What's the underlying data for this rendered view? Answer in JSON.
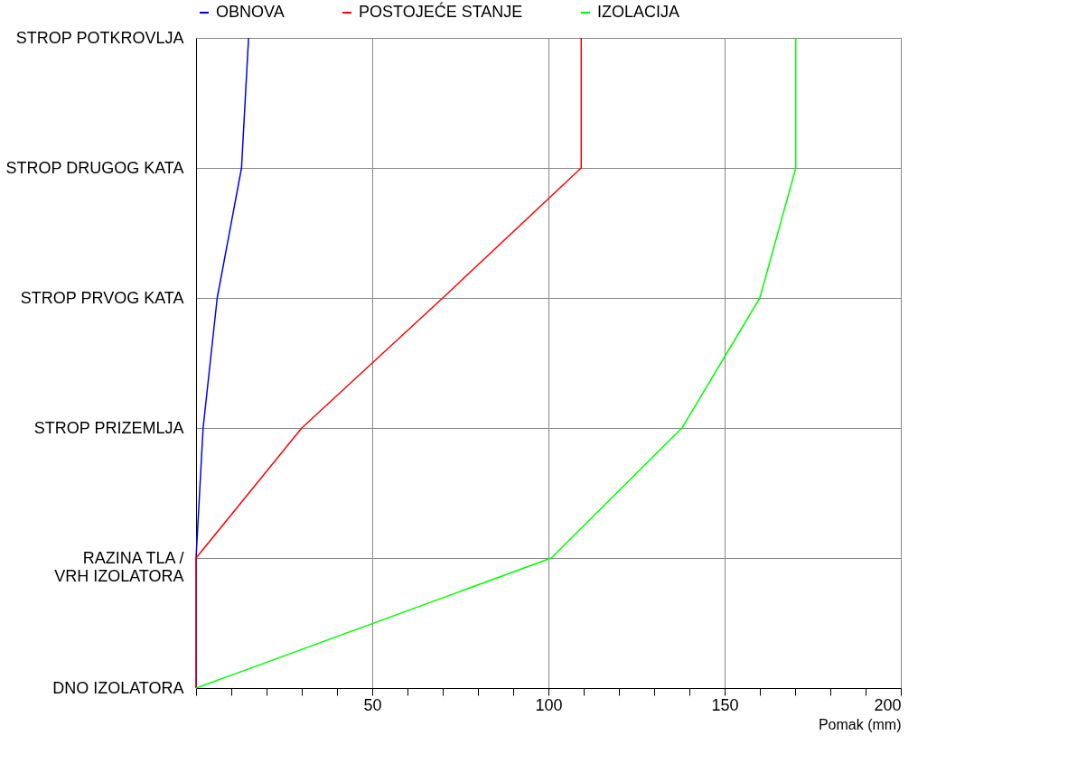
{
  "chart_data": {
    "type": "line",
    "orientation": "horizontal",
    "xlabel": "Pomak (mm)",
    "categories": [
      "STROP POTKROVLJA",
      "STROP DRUGOG KATA",
      "STROP PRVOG KATA",
      "STROP PRIZEMLJA",
      "RAZINA TLA /\nVRH IZOLATORA",
      "DNO IZOLATORA"
    ],
    "xlim": [
      0,
      200
    ],
    "xticks": [
      {
        "value": 0,
        "label": null
      },
      {
        "value": 10,
        "label": null
      },
      {
        "value": 20,
        "label": null
      },
      {
        "value": 30,
        "label": null
      },
      {
        "value": 40,
        "label": null
      },
      50,
      {
        "value": 60,
        "label": null
      },
      {
        "value": 70,
        "label": null
      },
      {
        "value": 80,
        "label": null
      },
      {
        "value": 90,
        "label": null
      },
      100,
      {
        "value": 110,
        "label": null
      },
      {
        "value": 120,
        "label": null
      },
      {
        "value": 130,
        "label": null
      },
      {
        "value": 140,
        "label": null
      },
      150,
      {
        "value": 160,
        "label": null
      },
      {
        "value": 170,
        "label": null
      },
      {
        "value": 180,
        "label": null
      },
      {
        "value": 190,
        "label": null
      },
      200
    ],
    "grid": true,
    "legend": "top",
    "marker": "none",
    "line_style": "solid",
    "series": [
      {
        "name": "OBNOVA",
        "color": "#0000ff",
        "values": [
          14.9,
          12.9,
          6,
          2,
          0,
          0
        ]
      },
      {
        "name": "POSTOJEĆE STANJE",
        "color": "#ff0000",
        "values": [
          109.3,
          109.3,
          70,
          30,
          0,
          0
        ]
      },
      {
        "name": "IZOLACIJA",
        "color": "#00ff00",
        "values": [
          170.2,
          170.2,
          160,
          137.9,
          100.8,
          0
        ]
      }
    ]
  }
}
